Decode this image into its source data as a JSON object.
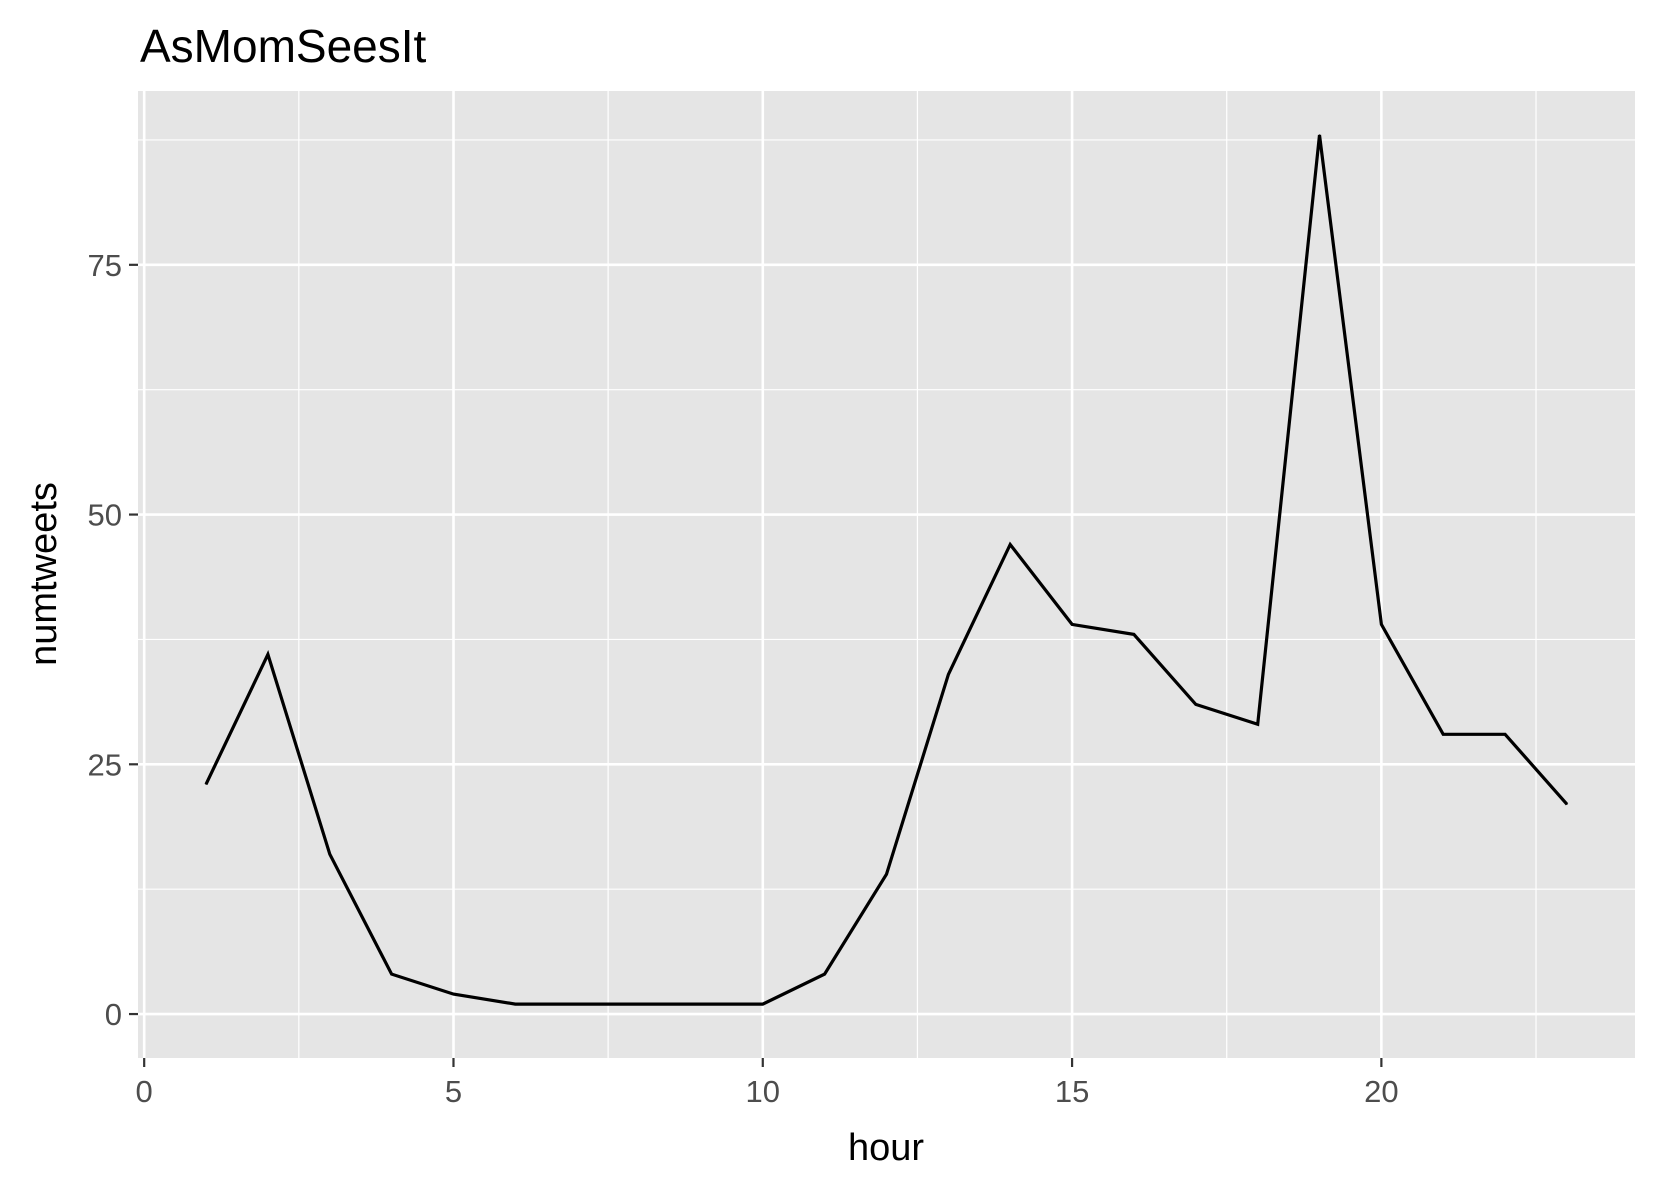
{
  "chart_data": {
    "type": "line",
    "title": "AsMomSeesIt",
    "xlabel": "hour",
    "ylabel": "numtweets",
    "xlim": [
      -0.1,
      24.1
    ],
    "ylim": [
      -4.4,
      92.4
    ],
    "x_major_ticks": [
      0,
      5,
      10,
      15,
      20
    ],
    "x_minor_ticks": [
      2.5,
      7.5,
      12.5,
      17.5,
      22.5
    ],
    "y_major_ticks": [
      0,
      25,
      50,
      75
    ],
    "y_minor_ticks": [
      12.5,
      37.5,
      62.5,
      87.5
    ],
    "x_tick_labels": [
      "0",
      "5",
      "10",
      "15",
      "20"
    ],
    "y_tick_labels": [
      "0",
      "25",
      "50",
      "75"
    ],
    "grid": true,
    "legend": "none",
    "series": [
      {
        "x": [
          1,
          2,
          3,
          4,
          5,
          6,
          7,
          8,
          9,
          10,
          11,
          12,
          13,
          14,
          15,
          16,
          17,
          18,
          19,
          20,
          21,
          22,
          23
        ],
        "values": [
          23,
          36,
          16,
          4,
          2,
          1,
          1,
          1,
          1,
          1,
          4,
          14,
          34,
          47,
          39,
          38,
          31,
          29,
          88,
          39,
          28,
          28,
          21
        ]
      }
    ],
    "colors": {
      "panel_background": "#e5e5e5",
      "grid": "#ffffff",
      "line": "#000000",
      "tick_text": "#4d4d4d",
      "tick_mark": "#333333"
    }
  }
}
